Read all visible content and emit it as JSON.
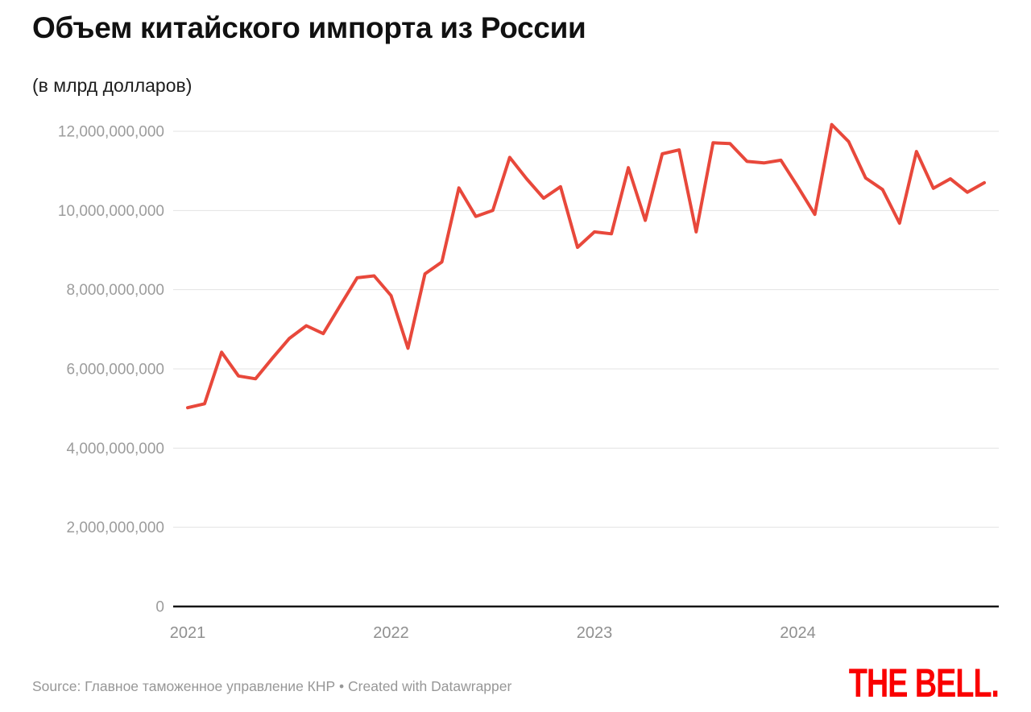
{
  "header": {
    "title": "Объем китайского импорта из России",
    "subtitle": "(в млрд долларов)"
  },
  "chart_data": {
    "type": "line",
    "title": "Объем китайского импорта из России",
    "subtitle": "(в млрд долларов)",
    "unit": "USD",
    "grid": "horizontal",
    "legend": "none",
    "line_color": "#e8483b",
    "x": [
      "2021-01",
      "2021-02",
      "2021-03",
      "2021-04",
      "2021-05",
      "2021-06",
      "2021-07",
      "2021-08",
      "2021-09",
      "2021-10",
      "2021-11",
      "2021-12",
      "2022-01",
      "2022-02",
      "2022-03",
      "2022-04",
      "2022-05",
      "2022-06",
      "2022-07",
      "2022-08",
      "2022-09",
      "2022-10",
      "2022-11",
      "2022-12",
      "2023-01",
      "2023-02",
      "2023-03",
      "2023-04",
      "2023-05",
      "2023-06",
      "2023-07",
      "2023-08",
      "2023-09",
      "2023-10",
      "2023-11",
      "2023-12",
      "2024-01",
      "2024-02",
      "2024-03",
      "2024-04",
      "2024-05",
      "2024-06",
      "2024-07",
      "2024-08",
      "2024-09",
      "2024-10",
      "2024-11",
      "2024-12"
    ],
    "values_usd_billions": [
      5.02,
      5.12,
      6.42,
      5.82,
      5.75,
      6.27,
      6.77,
      7.09,
      6.89,
      7.6,
      8.3,
      8.35,
      7.85,
      6.52,
      8.4,
      8.7,
      10.57,
      9.85,
      10.0,
      11.34,
      10.8,
      10.31,
      10.6,
      9.07,
      9.46,
      9.41,
      11.08,
      9.75,
      11.43,
      11.53,
      9.46,
      11.71,
      11.69,
      11.24,
      11.2,
      11.27,
      10.6,
      9.9,
      12.17,
      11.74,
      10.82,
      10.53,
      9.68,
      11.49,
      10.56,
      10.8,
      10.46,
      10.7
    ],
    "y_ticks_billions": [
      0,
      2,
      4,
      6,
      8,
      10,
      12
    ],
    "y_tick_labels": [
      "0",
      "2,000,000,000",
      "4,000,000,000",
      "6,000,000,000",
      "8,000,000,000",
      "10,000,000,000",
      "12,000,000,000"
    ],
    "x_tick_labels": [
      "2021",
      "2022",
      "2023",
      "2024"
    ],
    "ylim_billions": [
      0,
      12.5
    ]
  },
  "footer": {
    "source": "Source: Главное таможенное управление КНР • Created with Datawrapper",
    "logo": "THE BELL."
  },
  "colors": {
    "line": "#e8483b",
    "title": "#111111",
    "tick_label": "#9c9c9c",
    "gridline": "#e3e3e3",
    "axis": "#161616",
    "logo_red": "#fa0000"
  }
}
